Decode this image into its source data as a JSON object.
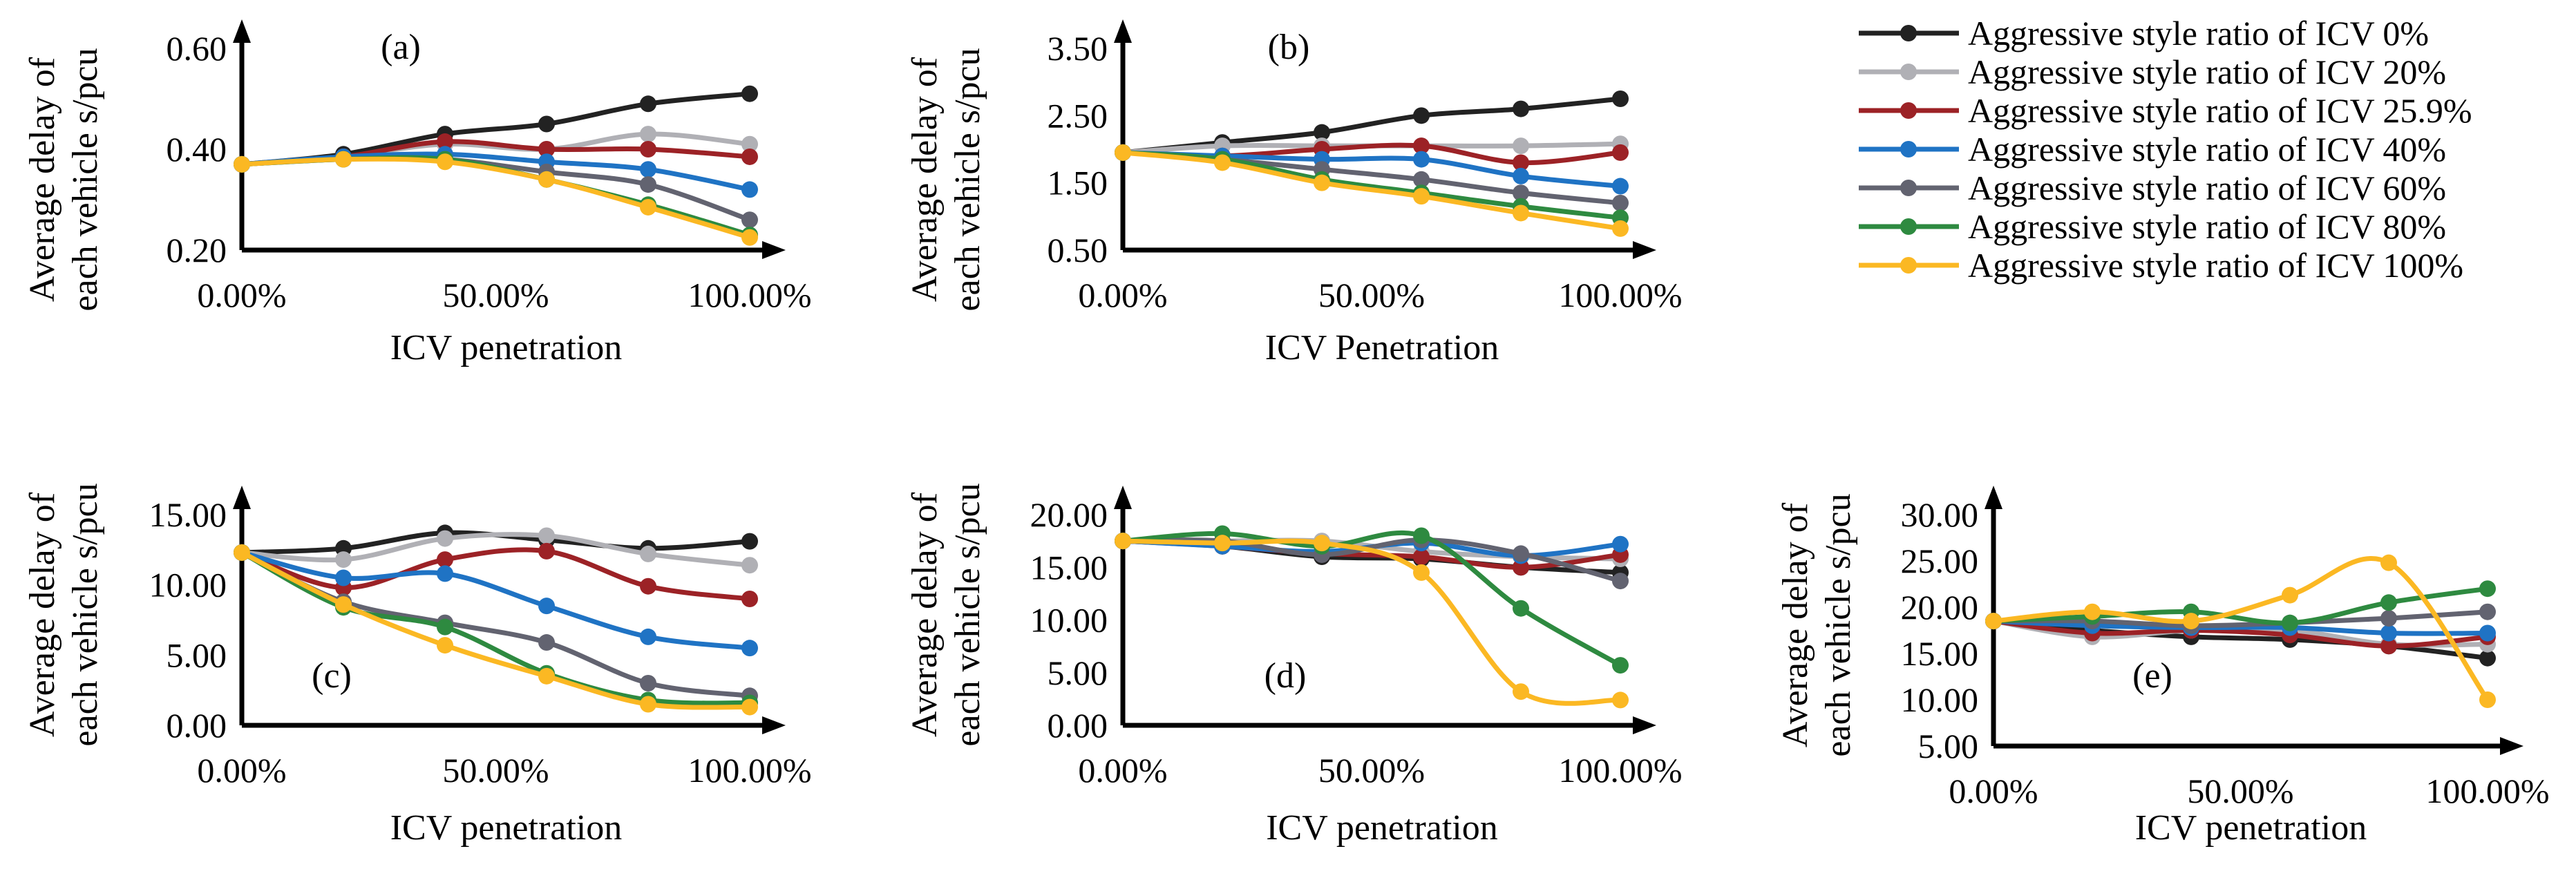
{
  "colors": {
    "Aggressive style ratio of ICV 0%": "#222222",
    "Aggressive style ratio of ICV 20%": "#b0b0b5",
    "Aggressive style ratio of ICV 25.9%": "#9c2226",
    "Aggressive style ratio of ICV 40%": "#1f73c4",
    "Aggressive style ratio of ICV 60%": "#626370",
    "Aggressive style ratio of ICV 80%": "#2e8a40",
    "Aggressive style ratio of ICV 100%": "#fbb823"
  },
  "legend": [
    "Aggressive style ratio of ICV 0%",
    "Aggressive style ratio of ICV 20%",
    "Aggressive style ratio of ICV 25.9%",
    "Aggressive style ratio of ICV 40%",
    "Aggressive style ratio of ICV 60%",
    "Aggressive style ratio of ICV 80%",
    "Aggressive style ratio of ICV 100%"
  ],
  "chart_data": [
    {
      "type": "line",
      "title": "(a)",
      "xlabel": "ICV penetration",
      "ylabel": "Average delay of each vehicle s/pcu",
      "xticks": [
        "0.00%",
        "50.00%",
        "100.00%"
      ],
      "yticks": [
        "0.20",
        "0.40",
        "0.60"
      ],
      "ylim": [
        0.2,
        0.6
      ],
      "xlim": [
        0,
        100
      ],
      "x": [
        0,
        20,
        40,
        60,
        80,
        100
      ],
      "series": [
        {
          "name": "Aggressive style ratio of ICV 0%",
          "values": [
            0.37,
            0.39,
            0.43,
            0.45,
            0.49,
            0.51
          ]
        },
        {
          "name": "Aggressive style ratio of ICV 20%",
          "values": [
            0.37,
            0.385,
            0.41,
            0.4,
            0.43,
            0.41
          ]
        },
        {
          "name": "Aggressive style ratio of ICV 25.9%",
          "values": [
            0.37,
            0.385,
            0.415,
            0.4,
            0.4,
            0.385
          ]
        },
        {
          "name": "Aggressive style ratio of ICV 40%",
          "values": [
            0.37,
            0.385,
            0.39,
            0.375,
            0.36,
            0.32
          ]
        },
        {
          "name": "Aggressive style ratio of ICV 60%",
          "values": [
            0.37,
            0.38,
            0.38,
            0.355,
            0.33,
            0.26
          ]
        },
        {
          "name": "Aggressive style ratio of ICV 80%",
          "values": [
            0.37,
            0.38,
            0.38,
            0.34,
            0.29,
            0.23
          ]
        },
        {
          "name": "Aggressive style ratio of ICV 100%",
          "values": [
            0.37,
            0.38,
            0.375,
            0.34,
            0.285,
            0.225
          ]
        }
      ]
    },
    {
      "type": "line",
      "title": "(b)",
      "xlabel": "ICV Penetration",
      "ylabel": "Average delay of each vehicle s/pcu",
      "xticks": [
        "0.00%",
        "50.00%",
        "100.00%"
      ],
      "yticks": [
        "0.50",
        "1.50",
        "2.50",
        "3.50"
      ],
      "ylim": [
        0.5,
        3.5
      ],
      "xlim": [
        0,
        100
      ],
      "x": [
        0,
        20,
        40,
        60,
        80,
        100
      ],
      "series": [
        {
          "name": "Aggressive style ratio of ICV 0%",
          "values": [
            1.95,
            2.1,
            2.25,
            2.5,
            2.6,
            2.75
          ]
        },
        {
          "name": "Aggressive style ratio of ICV 20%",
          "values": [
            1.95,
            2.05,
            2.05,
            2.05,
            2.05,
            2.08
          ]
        },
        {
          "name": "Aggressive style ratio of ICV 25.9%",
          "values": [
            1.95,
            1.9,
            2.0,
            2.05,
            1.8,
            1.95
          ]
        },
        {
          "name": "Aggressive style ratio of ICV 40%",
          "values": [
            1.95,
            1.9,
            1.85,
            1.85,
            1.6,
            1.45
          ]
        },
        {
          "name": "Aggressive style ratio of ICV 60%",
          "values": [
            1.95,
            1.85,
            1.7,
            1.55,
            1.35,
            1.2
          ]
        },
        {
          "name": "Aggressive style ratio of ICV 80%",
          "values": [
            1.95,
            1.85,
            1.55,
            1.35,
            1.15,
            0.98
          ]
        },
        {
          "name": "Aggressive style ratio of ICV 100%",
          "values": [
            1.95,
            1.8,
            1.5,
            1.3,
            1.05,
            0.82
          ]
        }
      ]
    },
    {
      "type": "line",
      "title": "(c)",
      "xlabel": "ICV penetration",
      "ylabel": "Average delay of each vehicle s/pcu",
      "xticks": [
        "0.00%",
        "50.00%",
        "100.00%"
      ],
      "yticks": [
        "0.00",
        "5.00",
        "10.00",
        "15.00"
      ],
      "ylim": [
        0,
        15
      ],
      "xlim": [
        0,
        100
      ],
      "x": [
        0,
        20,
        40,
        60,
        80,
        100
      ],
      "series": [
        {
          "name": "Aggressive style ratio of ICV 0%",
          "values": [
            12.3,
            12.6,
            13.7,
            13.2,
            12.6,
            13.1
          ]
        },
        {
          "name": "Aggressive style ratio of ICV 20%",
          "values": [
            12.3,
            11.8,
            13.3,
            13.5,
            12.2,
            11.4
          ]
        },
        {
          "name": "Aggressive style ratio of ICV 25.9%",
          "values": [
            12.3,
            9.8,
            11.8,
            12.4,
            9.9,
            9.0
          ]
        },
        {
          "name": "Aggressive style ratio of ICV 40%",
          "values": [
            12.3,
            10.5,
            10.8,
            8.5,
            6.3,
            5.5
          ]
        },
        {
          "name": "Aggressive style ratio of ICV 60%",
          "values": [
            12.3,
            8.8,
            7.3,
            5.9,
            3.0,
            2.1
          ]
        },
        {
          "name": "Aggressive style ratio of ICV 80%",
          "values": [
            12.3,
            8.4,
            7.0,
            3.7,
            1.8,
            1.6
          ]
        },
        {
          "name": "Aggressive style ratio of ICV 100%",
          "values": [
            12.3,
            8.6,
            5.7,
            3.5,
            1.5,
            1.3
          ]
        }
      ]
    },
    {
      "type": "line",
      "title": "(d)",
      "xlabel": "ICV penetration",
      "ylabel": "Average delay of each vehicle s/pcu",
      "xticks": [
        "0.00%",
        "50.00%",
        "100.00%"
      ],
      "yticks": [
        "0.00",
        "5.00",
        "10.00",
        "15.00",
        "20.00"
      ],
      "ylim": [
        0,
        20
      ],
      "xlim": [
        0,
        100
      ],
      "x": [
        0,
        20,
        40,
        60,
        80,
        100
      ],
      "series": [
        {
          "name": "Aggressive style ratio of ICV 0%",
          "values": [
            17.5,
            17.0,
            16.0,
            15.8,
            15.0,
            14.5
          ]
        },
        {
          "name": "Aggressive style ratio of ICV 20%",
          "values": [
            17.5,
            17.5,
            17.5,
            16.5,
            16.0,
            15.8
          ]
        },
        {
          "name": "Aggressive style ratio of ICV 25.9%",
          "values": [
            17.5,
            17.0,
            16.3,
            16.0,
            15.0,
            16.2
          ]
        },
        {
          "name": "Aggressive style ratio of ICV 40%",
          "values": [
            17.5,
            17.0,
            16.5,
            17.3,
            16.1,
            17.2
          ]
        },
        {
          "name": "Aggressive style ratio of ICV 60%",
          "values": [
            17.5,
            17.5,
            16.2,
            17.6,
            16.3,
            13.7
          ]
        },
        {
          "name": "Aggressive style ratio of ICV 80%",
          "values": [
            17.5,
            18.2,
            17.0,
            18.0,
            11.1,
            5.7
          ]
        },
        {
          "name": "Aggressive style ratio of ICV 100%",
          "values": [
            17.5,
            17.3,
            17.3,
            14.5,
            3.2,
            2.4
          ]
        }
      ]
    },
    {
      "type": "line",
      "title": "(e)",
      "xlabel": "ICV penetration",
      "ylabel": "Average delay of each vehicle s/pcu",
      "xticks": [
        "0.00%",
        "50.00%",
        "100.00%"
      ],
      "yticks": [
        "5.00",
        "10.00",
        "15.00",
        "20.00",
        "25.00",
        "30.00"
      ],
      "ylim": [
        5,
        30
      ],
      "xlim": [
        0,
        100
      ],
      "x": [
        0,
        20,
        40,
        60,
        80,
        100
      ],
      "series": [
        {
          "name": "Aggressive style ratio of ICV 0%",
          "values": [
            18.5,
            17.5,
            16.8,
            16.5,
            15.8,
            14.5
          ]
        },
        {
          "name": "Aggressive style ratio of ICV 20%",
          "values": [
            18.5,
            16.8,
            17.5,
            17.5,
            16.0,
            16.0
          ]
        },
        {
          "name": "Aggressive style ratio of ICV 25.9%",
          "values": [
            18.5,
            17.2,
            17.5,
            17.0,
            15.8,
            16.8
          ]
        },
        {
          "name": "Aggressive style ratio of ICV 40%",
          "values": [
            18.5,
            18.0,
            17.8,
            17.8,
            17.2,
            17.2
          ]
        },
        {
          "name": "Aggressive style ratio of ICV 60%",
          "values": [
            18.5,
            18.5,
            18.0,
            18.3,
            18.8,
            19.5
          ]
        },
        {
          "name": "Aggressive style ratio of ICV 80%",
          "values": [
            18.5,
            19.0,
            19.5,
            18.3,
            20.5,
            22.0
          ]
        },
        {
          "name": "Aggressive style ratio of ICV 100%",
          "values": [
            18.5,
            19.5,
            18.5,
            21.3,
            24.8,
            10.0
          ]
        }
      ]
    }
  ]
}
